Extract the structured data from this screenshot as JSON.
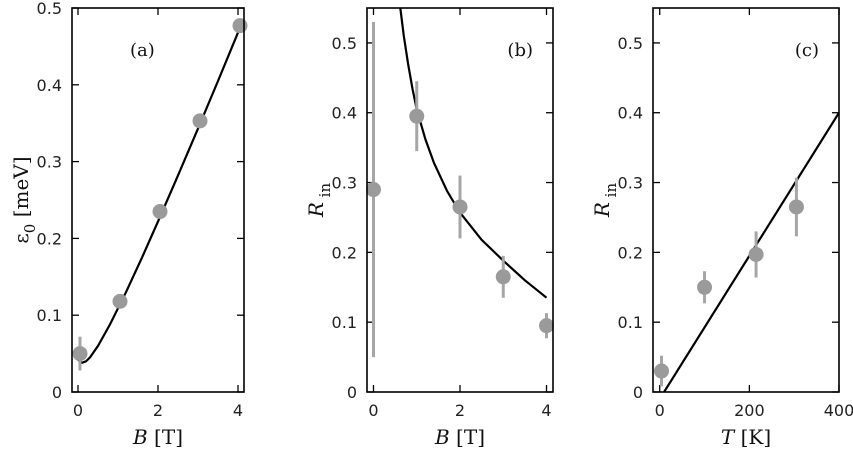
{
  "chart_data": [
    {
      "type": "scatter",
      "panel_label": "(a)",
      "xlabel": "B [T]",
      "ylabel": "ε0 [meV]",
      "xlim": [
        -0.15,
        4.15
      ],
      "ylim": [
        0,
        0.5
      ],
      "xticks": [
        0,
        2,
        4
      ],
      "yticks": [
        0,
        0.1,
        0.2,
        0.3,
        0.4,
        0.5
      ],
      "yticklabels": [
        "0",
        "0.1",
        "0.2",
        "0.3",
        "0.4",
        "0.5"
      ],
      "xticklabels": [
        "0",
        "2",
        "4"
      ],
      "points": [
        {
          "x": 0.05,
          "y": 0.05,
          "err": 0.022
        },
        {
          "x": 1.05,
          "y": 0.118,
          "err": 0.006
        },
        {
          "x": 2.05,
          "y": 0.235,
          "err": 0.006
        },
        {
          "x": 3.05,
          "y": 0.353,
          "err": 0.006
        },
        {
          "x": 4.05,
          "y": 0.477,
          "err": 0.006
        }
      ],
      "fit": {
        "x": [
          0,
          0.1,
          0.2,
          0.3,
          0.5,
          0.8,
          1.2,
          1.6,
          2.0,
          2.5,
          3.0,
          3.5,
          4.0
        ],
        "y": [
          0.042,
          0.038,
          0.04,
          0.045,
          0.06,
          0.088,
          0.13,
          0.175,
          0.222,
          0.282,
          0.343,
          0.405,
          0.468
        ]
      }
    },
    {
      "type": "scatter",
      "panel_label": "(b)",
      "xlabel": "B [T]",
      "ylabel": "R in",
      "xlim": [
        -0.15,
        4.15
      ],
      "ylim": [
        0,
        0.55
      ],
      "xticks": [
        0,
        2,
        4
      ],
      "yticks": [
        0,
        0.1,
        0.2,
        0.3,
        0.4,
        0.5
      ],
      "yticklabels": [
        "0",
        "0.1",
        "0.2",
        "0.3",
        "0.4",
        "0.5"
      ],
      "xticklabels": [
        "0",
        "2",
        "4"
      ],
      "points": [
        {
          "x": 0.0,
          "y": 0.29,
          "err": 0.24
        },
        {
          "x": 1.0,
          "y": 0.395,
          "err": 0.05
        },
        {
          "x": 2.0,
          "y": 0.265,
          "err": 0.045
        },
        {
          "x": 3.0,
          "y": 0.165,
          "err": 0.03
        },
        {
          "x": 4.0,
          "y": 0.095,
          "err": 0.018
        }
      ],
      "fit": {
        "x": [
          0.62,
          0.7,
          0.8,
          0.9,
          1.0,
          1.2,
          1.4,
          1.7,
          2.0,
          2.5,
          3.0,
          3.5,
          4.0
        ],
        "y": [
          0.55,
          0.51,
          0.47,
          0.435,
          0.405,
          0.362,
          0.328,
          0.288,
          0.257,
          0.218,
          0.188,
          0.16,
          0.135
        ]
      }
    },
    {
      "type": "scatter",
      "panel_label": "(c)",
      "xlabel": "T [K]",
      "ylabel": "R in",
      "xlim": [
        -15,
        400
      ],
      "ylim": [
        0,
        0.55
      ],
      "xticks": [
        0,
        200,
        400
      ],
      "yticks": [
        0,
        0.1,
        0.2,
        0.3,
        0.4,
        0.5
      ],
      "yticklabels": [
        "0",
        "0.1",
        "0.2",
        "0.3",
        "0.4",
        "0.5"
      ],
      "xticklabels": [
        "0",
        "200",
        "400"
      ],
      "points": [
        {
          "x": 4,
          "y": 0.03,
          "err": 0.022
        },
        {
          "x": 100,
          "y": 0.15,
          "err": 0.023
        },
        {
          "x": 215,
          "y": 0.197,
          "err": 0.033
        },
        {
          "x": 305,
          "y": 0.265,
          "err": 0.042
        }
      ],
      "fit": {
        "x": [
          0,
          400
        ],
        "y": [
          -0.01,
          0.4
        ]
      }
    }
  ]
}
